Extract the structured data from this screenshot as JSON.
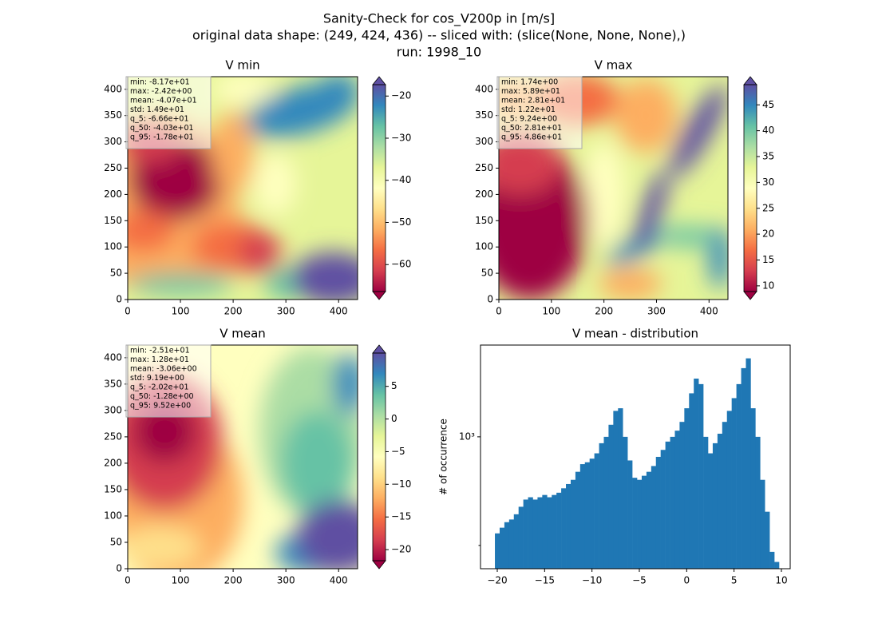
{
  "suptitle": [
    "Sanity-Check for cos_V200p in [m/s]",
    "original data shape: (249, 424, 436) -- sliced with: (slice(None, None, None),)",
    "run: 1998_10"
  ],
  "chart_data": [
    {
      "type": "heatmap",
      "title": "V min",
      "xlim": [
        0,
        436
      ],
      "ylim": [
        0,
        424
      ],
      "xticks": [
        0,
        100,
        200,
        300,
        400
      ],
      "yticks": [
        0,
        50,
        100,
        150,
        200,
        250,
        300,
        350,
        400
      ],
      "colormap": "Spectral",
      "colorbar_extend": "both",
      "clim": [
        -66.4,
        -17.3
      ],
      "colorbar_ticks": [
        {
          "value": -60,
          "label": "−60"
        },
        {
          "value": -50,
          "label": "−50"
        },
        {
          "value": -40,
          "label": "−40"
        },
        {
          "value": -30,
          "label": "−30"
        },
        {
          "value": -20,
          "label": "−20"
        }
      ],
      "stats": [
        "min: -8.17e+01",
        "max: -2.42e+00",
        "mean: -4.07e+01",
        "std: 1.49e+01",
        "q_5: -6.66e+01",
        "q_50: -4.03e+01",
        "q_95: -1.78e+01"
      ]
    },
    {
      "type": "heatmap",
      "title": "V max",
      "xlim": [
        0,
        436
      ],
      "ylim": [
        0,
        424
      ],
      "xticks": [
        0,
        100,
        200,
        300,
        400
      ],
      "yticks": [
        0,
        50,
        100,
        150,
        200,
        250,
        300,
        350,
        400
      ],
      "colormap": "Spectral",
      "colorbar_extend": "both",
      "clim": [
        8.9,
        48.9
      ],
      "colorbar_ticks": [
        10,
        15,
        20,
        25,
        30,
        35,
        40,
        45
      ],
      "stats": [
        "min: 1.74e+00",
        "max: 5.89e+01",
        "mean: 2.81e+01",
        "std: 1.22e+01",
        "q_5: 9.24e+00",
        "q_50: 2.81e+01",
        "q_95: 4.86e+01"
      ]
    },
    {
      "type": "heatmap",
      "title": "V mean",
      "xlim": [
        0,
        436
      ],
      "ylim": [
        0,
        424
      ],
      "xticks": [
        0,
        100,
        200,
        300,
        400
      ],
      "yticks": [
        0,
        50,
        100,
        150,
        200,
        250,
        300,
        350,
        400
      ],
      "colormap": "Spectral",
      "colorbar_extend": "both",
      "clim": [
        -21.7,
        10.1
      ],
      "colorbar_ticks": [
        {
          "value": -20,
          "label": "−20"
        },
        {
          "value": -15,
          "label": "−15"
        },
        {
          "value": -10,
          "label": "−10"
        },
        {
          "value": -5,
          "label": "−5"
        },
        0,
        5
      ],
      "stats": [
        "min: -2.51e+01",
        "max: 1.28e+01",
        "mean: -3.06e+00",
        "std: 9.19e+00",
        "q_5: -2.02e+01",
        "q_50: -1.28e+00",
        "q_95: 9.52e+00"
      ]
    },
    {
      "type": "histogram",
      "title": "V mean - distribution",
      "ylabel": "# of occurrence",
      "color": "#1f77b4",
      "log_y": true,
      "xlim": [
        -21.77,
        10.93
      ],
      "ylim": [
        431,
        1796
      ],
      "xticks": [
        {
          "value": -20,
          "label": "−20"
        },
        {
          "value": -15,
          "label": "−15"
        },
        {
          "value": -10,
          "label": "−10"
        },
        {
          "value": -5,
          "label": "−5"
        },
        0,
        5,
        10
      ],
      "yticks": [
        {
          "value": 1000,
          "label": "10³"
        }
      ],
      "yminorticks": [
        500
      ],
      "bins": [
        -20.25,
        -19.75,
        -19.25,
        -18.75,
        -18.25,
        -17.75,
        -17.25,
        -16.75,
        -16.25,
        -15.75,
        -15.25,
        -14.75,
        -14.25,
        -13.75,
        -13.25,
        -12.75,
        -12.25,
        -11.75,
        -11.25,
        -10.75,
        -10.25,
        -9.75,
        -9.25,
        -8.75,
        -8.25,
        -7.75,
        -7.25,
        -6.75,
        -6.25,
        -5.75,
        -5.25,
        -4.75,
        -4.25,
        -3.75,
        -3.25,
        -2.75,
        -2.25,
        -1.75,
        -1.25,
        -0.75,
        -0.25,
        0.25,
        0.75,
        1.25,
        1.75,
        2.25,
        2.75,
        3.25,
        3.75,
        4.25,
        4.75,
        5.25,
        5.75,
        6.25,
        6.75,
        7.25,
        7.75,
        8.25,
        8.75,
        9.25,
        9.75
      ],
      "values": [
        540,
        560,
        580,
        590,
        610,
        640,
        670,
        680,
        670,
        680,
        690,
        680,
        690,
        700,
        720,
        740,
        760,
        800,
        840,
        850,
        870,
        900,
        960,
        1000,
        1080,
        1180,
        1200,
        1000,
        860,
        770,
        760,
        780,
        800,
        830,
        880,
        920,
        970,
        1000,
        1040,
        1100,
        1200,
        1320,
        1450,
        1400,
        1000,
        900,
        960,
        1020,
        1100,
        1180,
        1280,
        1400,
        1550,
        1650,
        1200,
        1000,
        760,
        620,
        480,
        450
      ]
    }
  ]
}
